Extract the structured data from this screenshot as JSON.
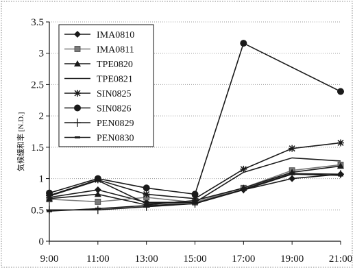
{
  "chart_data": {
    "type": "line",
    "title": "",
    "xlabel": "",
    "ylabel": "気候緩和率 [N.D.]",
    "categories": [
      "9:00",
      "11:00",
      "13:00",
      "15:00",
      "17:00",
      "19:00",
      "21:00"
    ],
    "ylim": [
      0,
      3.5
    ],
    "yticks": [
      "0",
      "0.5",
      "1",
      "1.5",
      "2",
      "2.5",
      "3",
      "3.5"
    ],
    "grid": "horizontal-dotted",
    "legend_position": "top-left",
    "series": [
      {
        "name": "IMA0810",
        "marker": "diamond",
        "color": "#1a1a1a",
        "values": [
          0.7,
          0.82,
          0.62,
          0.62,
          0.82,
          1.0,
          1.07
        ]
      },
      {
        "name": "IMA0811",
        "marker": "square",
        "color": "#7a7a7a",
        "values": [
          0.67,
          0.63,
          0.7,
          0.62,
          0.85,
          1.13,
          1.22
        ]
      },
      {
        "name": "TPE0820",
        "marker": "triangle",
        "color": "#1a1a1a",
        "values": [
          0.68,
          0.75,
          0.58,
          0.65,
          0.85,
          1.1,
          1.2
        ]
      },
      {
        "name": "TPE0821",
        "marker": "none",
        "color": "#1a1a1a",
        "values": [
          0.72,
          0.97,
          0.6,
          0.62,
          1.1,
          1.33,
          1.28
        ]
      },
      {
        "name": "SIN0825",
        "marker": "asterisk",
        "color": "#1a1a1a",
        "values": [
          0.73,
          0.98,
          0.75,
          0.68,
          1.15,
          1.48,
          1.57
        ]
      },
      {
        "name": "SIN0826",
        "marker": "circle",
        "color": "#1a1a1a",
        "values": [
          0.77,
          1.0,
          0.85,
          0.75,
          3.16,
          null,
          2.39
        ]
      },
      {
        "name": "PEN0829",
        "marker": "plus",
        "color": "#1a1a1a",
        "values": [
          0.5,
          0.5,
          0.55,
          0.6,
          0.83,
          1.08,
          1.07
        ]
      },
      {
        "name": "PEN0830",
        "marker": "dash",
        "color": "#1a1a1a",
        "values": [
          0.48,
          0.52,
          0.57,
          0.6,
          0.82,
          1.07,
          1.05
        ]
      }
    ]
  }
}
